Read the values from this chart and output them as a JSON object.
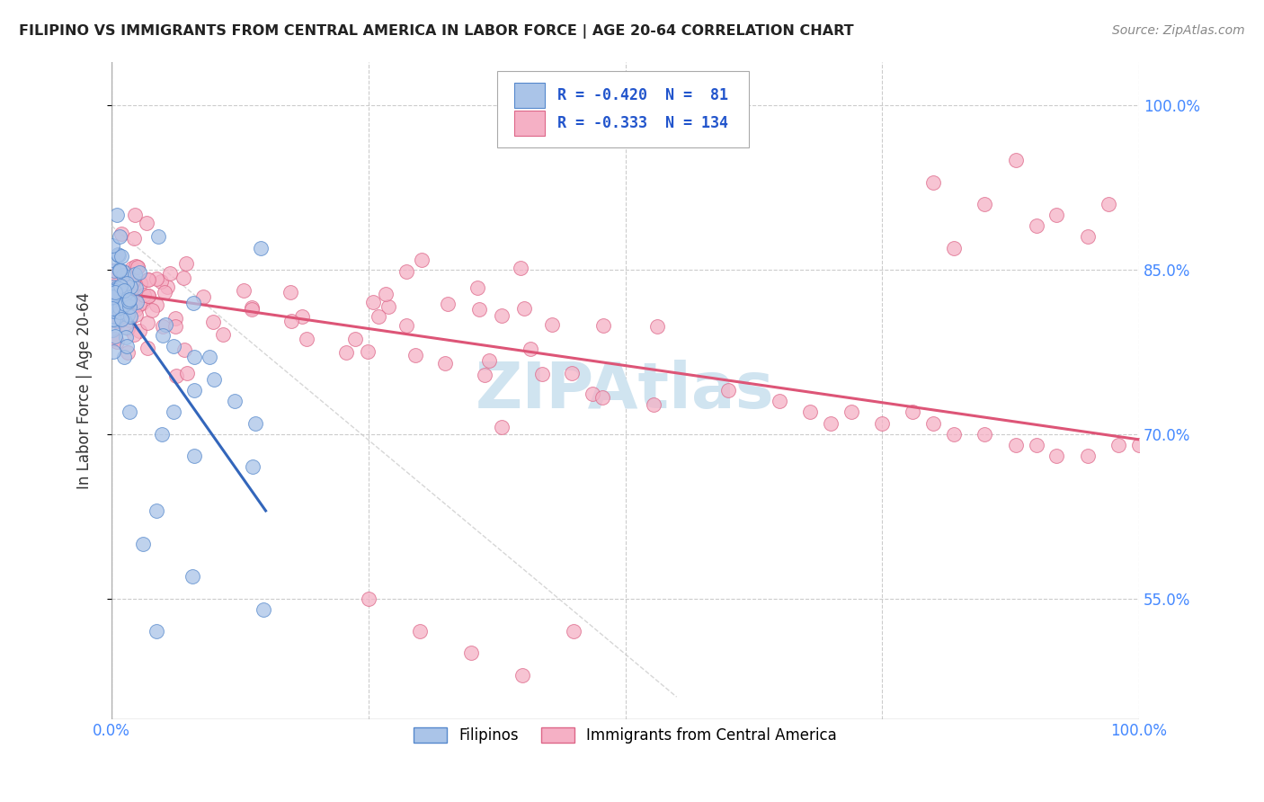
{
  "title": "FILIPINO VS IMMIGRANTS FROM CENTRAL AMERICA IN LABOR FORCE | AGE 20-64 CORRELATION CHART",
  "source": "Source: ZipAtlas.com",
  "ylabel": "In Labor Force | Age 20-64",
  "xlim": [
    0,
    1.0
  ],
  "ylim": [
    0.44,
    1.04
  ],
  "yticks": [
    0.55,
    0.7,
    0.85,
    1.0
  ],
  "ytick_labels": [
    "55.0%",
    "70.0%",
    "85.0%",
    "100.0%"
  ],
  "grid_color": "#cccccc",
  "background_color": "#ffffff",
  "series1_color": "#aac4e8",
  "series1_edge": "#5588cc",
  "series2_color": "#f5b0c5",
  "series2_edge": "#dd6688",
  "line1_color": "#3366bb",
  "line2_color": "#dd5577",
  "ref_line_color": "#cccccc",
  "legend_R1": "-0.420",
  "legend_N1": "81",
  "legend_R2": "-0.333",
  "legend_N2": "134",
  "legend_label1": "Filipinos",
  "legend_label2": "Immigrants from Central America",
  "watermark_color": "#d0e4f0",
  "title_color": "#222222",
  "source_color": "#888888",
  "axis_label_color": "#333333",
  "tick_color": "#4488ff"
}
